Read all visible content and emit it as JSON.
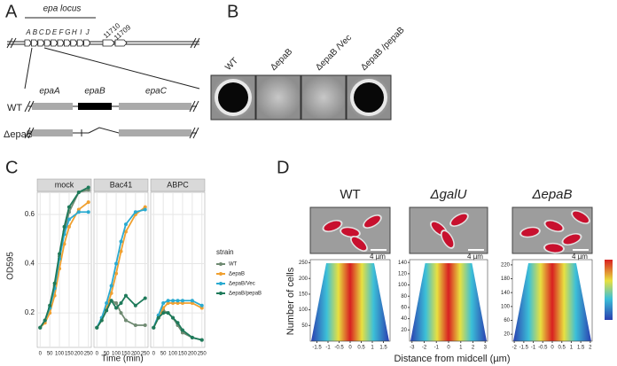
{
  "panel_a": {
    "label": "A",
    "locus_title": "epa locus",
    "genes": [
      "A",
      "B",
      "C",
      "D",
      "E",
      "F",
      "G",
      "H",
      "I",
      "J"
    ],
    "extra_genes": [
      "11710",
      "11709"
    ],
    "zoom_genes": [
      "epaA",
      "epaB",
      "epaC"
    ],
    "rows": [
      "WT",
      "ΔepaB"
    ]
  },
  "panel_b": {
    "label": "B",
    "samples": [
      "WT",
      "ΔepaB",
      "ΔepaB /Vec",
      "ΔepaB /pepaB"
    ]
  },
  "panel_c": {
    "label": "C",
    "type": "line",
    "x_label": "Time (min)",
    "y_label": "OD595",
    "x": [
      0,
      25,
      50,
      75,
      100,
      125,
      150,
      200,
      250
    ],
    "xlim": [
      -15,
      265
    ],
    "xticks": [
      0,
      50,
      100,
      150,
      200,
      250
    ],
    "ylim": [
      0.06,
      0.69
    ],
    "yticks": [
      0.2,
      0.4,
      0.6
    ],
    "grid": true,
    "legend": {
      "title": "strain",
      "entries": [
        {
          "name": "WT",
          "color": "#6f8a72"
        },
        {
          "name": "ΔepaB",
          "color": "#f0a030"
        },
        {
          "name": "ΔepaB/Vec",
          "color": "#2aaad0"
        },
        {
          "name": "ΔepaB/pepaB",
          "color": "#1e7a5a"
        }
      ]
    },
    "facets": [
      {
        "name": "mock",
        "series": [
          {
            "values": [
              0.14,
              0.17,
              0.22,
              0.31,
              0.43,
              0.53,
              0.61,
              0.69,
              0.7
            ]
          },
          {
            "values": [
              0.14,
              0.16,
              0.2,
              0.27,
              0.38,
              0.48,
              0.55,
              0.62,
              0.65
            ]
          },
          {
            "values": [
              0.14,
              0.17,
              0.22,
              0.3,
              0.42,
              0.52,
              0.58,
              0.61,
              0.61
            ]
          },
          {
            "values": [
              0.14,
              0.17,
              0.23,
              0.32,
              0.44,
              0.55,
              0.63,
              0.69,
              0.71
            ]
          }
        ]
      },
      {
        "name": "Bac41",
        "series": [
          {
            "values": [
              0.14,
              0.17,
              0.22,
              0.25,
              0.24,
              0.2,
              0.17,
              0.15,
              0.15
            ]
          },
          {
            "values": [
              0.14,
              0.17,
              0.22,
              0.28,
              0.36,
              0.45,
              0.53,
              0.6,
              0.63
            ]
          },
          {
            "values": [
              0.14,
              0.18,
              0.24,
              0.31,
              0.4,
              0.49,
              0.56,
              0.61,
              0.62
            ]
          },
          {
            "values": [
              0.14,
              0.17,
              0.21,
              0.25,
              0.22,
              0.24,
              0.27,
              0.23,
              0.26
            ]
          }
        ]
      },
      {
        "name": "ABPC",
        "series": [
          {
            "values": [
              0.14,
              0.19,
              0.21,
              0.2,
              0.18,
              0.15,
              0.12,
              0.1,
              0.09
            ]
          },
          {
            "values": [
              0.14,
              0.18,
              0.22,
              0.24,
              0.24,
              0.24,
              0.24,
              0.24,
              0.22
            ]
          },
          {
            "values": [
              0.14,
              0.19,
              0.24,
              0.25,
              0.25,
              0.25,
              0.25,
              0.25,
              0.23
            ]
          },
          {
            "values": [
              0.14,
              0.18,
              0.2,
              0.2,
              0.18,
              0.16,
              0.13,
              0.1,
              0.09
            ]
          }
        ]
      }
    ]
  },
  "panel_d": {
    "label": "D",
    "y_label": "Number of cells",
    "x_label": "Distance from midcell (µm)",
    "scale_bar": "4 µm",
    "strains": [
      {
        "name": "WT",
        "xlim": [
          -1.8,
          1.8
        ],
        "xticks": [
          -1.5,
          -1,
          -0.5,
          0,
          0.5,
          1,
          1.5
        ],
        "ylim": [
          0,
          260
        ],
        "yticks": [
          50,
          100,
          150,
          200,
          250
        ]
      },
      {
        "name": "ΔgalU",
        "xlim": [
          -3.2,
          3.2
        ],
        "xticks": [
          -3,
          -2,
          -1,
          0,
          1,
          2,
          3
        ],
        "ylim": [
          0,
          145
        ],
        "yticks": [
          20,
          40,
          60,
          80,
          100,
          120,
          140
        ]
      },
      {
        "name": "ΔepaB",
        "xlim": [
          -2.1,
          2.1
        ],
        "xticks": [
          -2,
          -1.5,
          -1,
          -0.5,
          0,
          0.5,
          1,
          1.5,
          2
        ],
        "ylim": [
          0,
          235
        ],
        "yticks": [
          20,
          60,
          100,
          140,
          180,
          220
        ]
      }
    ]
  }
}
